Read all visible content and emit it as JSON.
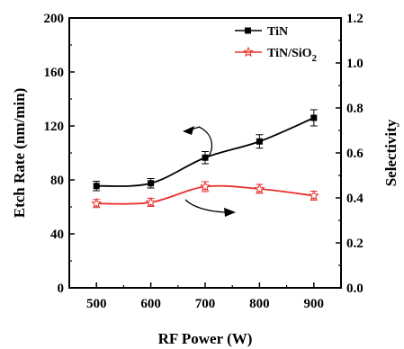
{
  "chart_data": {
    "type": "line",
    "x": [
      500,
      600,
      700,
      800,
      900
    ],
    "xlabel": "RF Power (W)",
    "xlim": [
      450,
      950
    ],
    "xticks": [
      "500",
      "600",
      "700",
      "800",
      "900"
    ],
    "ylabel": "Etch Rate (nm/min)",
    "ylim": [
      0,
      200
    ],
    "yticks": [
      "0",
      "40",
      "80",
      "120",
      "160",
      "200"
    ],
    "y2label": "Selectivity",
    "y2lim": [
      0.0,
      1.2
    ],
    "y2ticks": [
      "0.0",
      "0.2",
      "0.4",
      "0.6",
      "0.8",
      "1.0",
      "1.2"
    ],
    "grid": false,
    "legend_position": "top-right",
    "series": [
      {
        "name": "TiN",
        "axis": "left",
        "marker": "filled-square",
        "color": "#000000",
        "values": [
          75.5,
          77.5,
          96.5,
          108.5,
          126
        ],
        "errors": [
          3.5,
          3.5,
          4.5,
          5,
          6
        ]
      },
      {
        "name": "TiN/SiO",
        "name_subscript": "2",
        "axis": "right",
        "marker": "open-star",
        "color": "#e8302a",
        "values": [
          0.375,
          0.38,
          0.45,
          0.44,
          0.41
        ],
        "errors": [
          0.018,
          0.018,
          0.022,
          0.02,
          0.02
        ]
      }
    ]
  }
}
